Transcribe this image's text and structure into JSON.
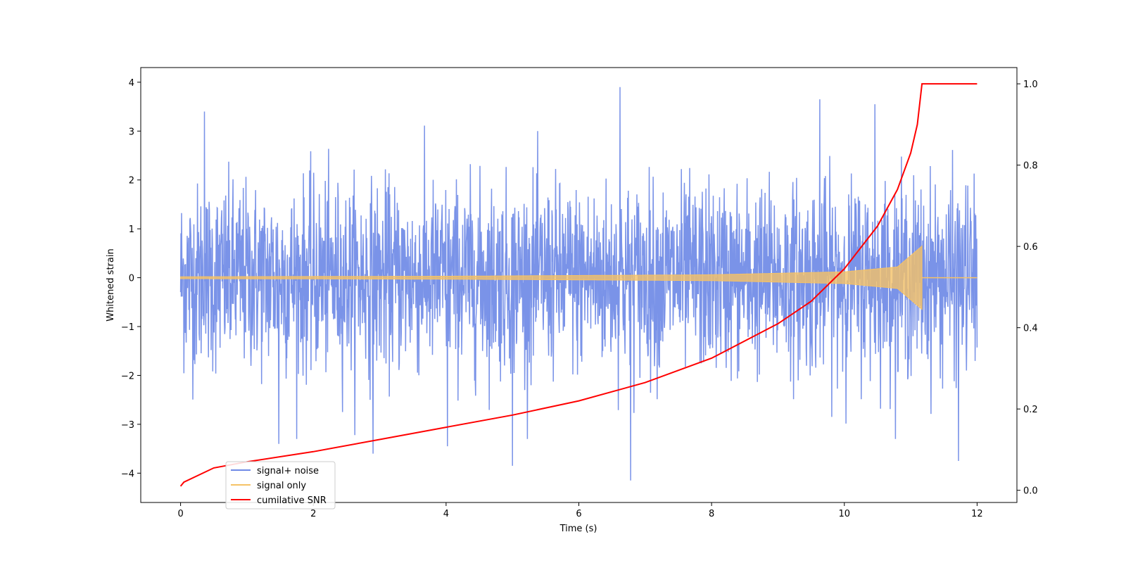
{
  "chart_data": {
    "type": "line",
    "title": "",
    "xlabel": "Time (s)",
    "ylabel": "Whitened strain",
    "y2label": "",
    "xlim": [
      -0.6,
      12.6
    ],
    "ylim": [
      -4.6,
      4.3
    ],
    "y2lim": [
      -0.03,
      1.04
    ],
    "xticks": [
      0,
      2,
      4,
      6,
      8,
      10,
      12
    ],
    "xtick_labels": [
      "0",
      "2",
      "4",
      "6",
      "8",
      "10",
      "12"
    ],
    "yticks": [
      4,
      3,
      2,
      1,
      0,
      -1,
      -2,
      -3,
      -4
    ],
    "ytick_labels": [
      "4",
      "3",
      "2",
      "1",
      "0",
      "−1",
      "−2",
      "−3",
      "−4"
    ],
    "y2ticks": [
      1.0,
      0.8,
      0.6,
      0.4,
      0.2,
      0.0
    ],
    "y2tick_labels": [
      "1.0",
      "0.8",
      "0.6",
      "0.4",
      "0.2",
      "0.0"
    ],
    "grid": false,
    "legend_position": "lower-left",
    "series": [
      {
        "name": "signal+ noise",
        "axis": "left",
        "color": "#6f8ae6",
        "t_range": [
          0,
          12
        ],
        "noise_std": 0.95,
        "extremes": [
          {
            "t": 6.62,
            "y": 3.9
          },
          {
            "t": 6.78,
            "y": -4.15
          },
          {
            "t": 9.63,
            "y": 3.65
          },
          {
            "t": 11.72,
            "y": -3.75
          },
          {
            "t": 5.0,
            "y": -3.85
          },
          {
            "t": 0.36,
            "y": 3.4
          },
          {
            "t": 1.48,
            "y": -3.4
          },
          {
            "t": 10.46,
            "y": 3.55
          },
          {
            "t": 4.02,
            "y": -3.45
          },
          {
            "t": 2.9,
            "y": -3.6
          }
        ]
      },
      {
        "name": "signal only",
        "axis": "left",
        "color": "#f5c266",
        "t_range": [
          0,
          12
        ],
        "merger_time": 11.17,
        "envelope": [
          {
            "t": 0.0,
            "amp": 0.02
          },
          {
            "t": 4.0,
            "amp": 0.03
          },
          {
            "t": 8.0,
            "amp": 0.06
          },
          {
            "t": 10.0,
            "amp": 0.12
          },
          {
            "t": 10.8,
            "amp": 0.22
          },
          {
            "t": 11.17,
            "amp": 0.65
          }
        ]
      },
      {
        "name": "cumilative SNR",
        "axis": "right",
        "color": "#ff0000",
        "points": [
          {
            "x": 0.0,
            "y": 0.01
          },
          {
            "x": 0.05,
            "y": 0.02
          },
          {
            "x": 0.5,
            "y": 0.055
          },
          {
            "x": 1.0,
            "y": 0.07
          },
          {
            "x": 2.0,
            "y": 0.095
          },
          {
            "x": 3.0,
            "y": 0.125
          },
          {
            "x": 4.0,
            "y": 0.155
          },
          {
            "x": 5.0,
            "y": 0.185
          },
          {
            "x": 6.0,
            "y": 0.22
          },
          {
            "x": 7.0,
            "y": 0.265
          },
          {
            "x": 8.0,
            "y": 0.325
          },
          {
            "x": 9.0,
            "y": 0.41
          },
          {
            "x": 9.5,
            "y": 0.465
          },
          {
            "x": 10.0,
            "y": 0.545
          },
          {
            "x": 10.5,
            "y": 0.65
          },
          {
            "x": 10.8,
            "y": 0.74
          },
          {
            "x": 11.0,
            "y": 0.83
          },
          {
            "x": 11.1,
            "y": 0.9
          },
          {
            "x": 11.17,
            "y": 1.0
          },
          {
            "x": 12.0,
            "y": 1.0
          }
        ]
      }
    ]
  }
}
